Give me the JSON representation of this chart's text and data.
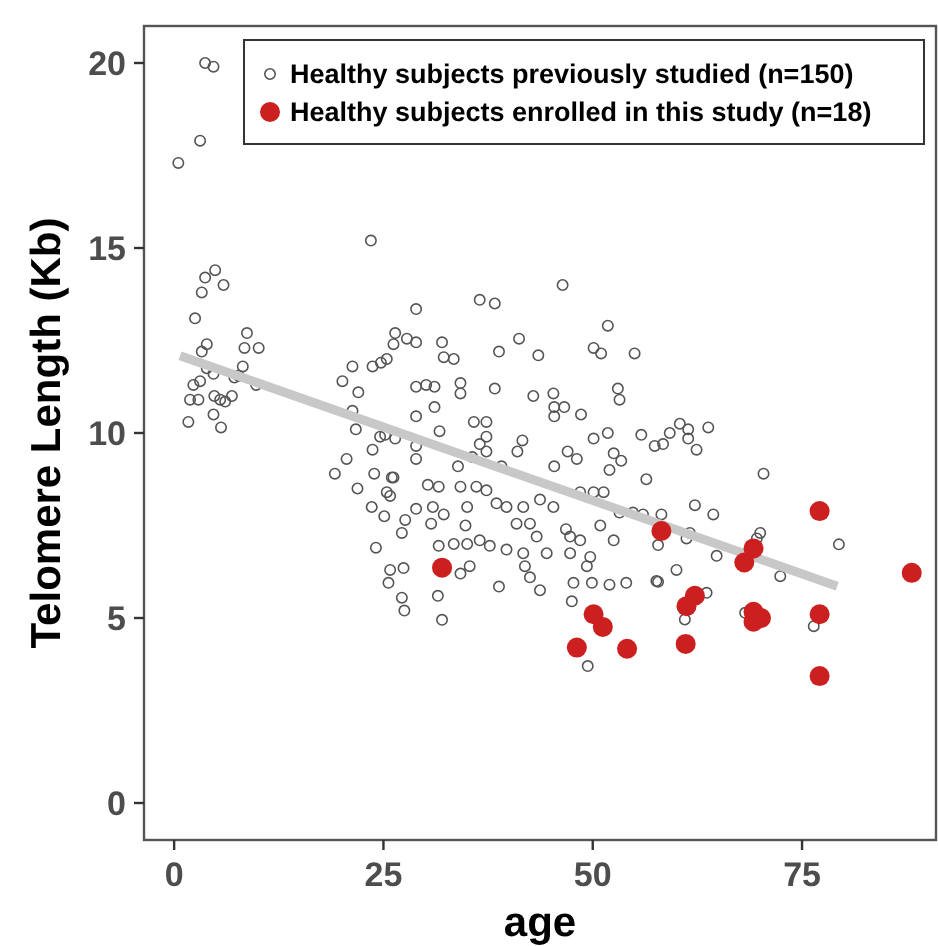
{
  "chart_data": {
    "type": "scatter",
    "xlabel": "age",
    "ylabel": "Telomere Length (Kb)",
    "xlim": [
      -3.6,
      91
    ],
    "ylim": [
      -1,
      21
    ],
    "xticks": [
      0,
      25,
      50,
      75
    ],
    "yticks": [
      0,
      5,
      10,
      15,
      20
    ],
    "grid": false,
    "legend": "top right",
    "marker": "circle",
    "series": [
      {
        "name": "Healthy subjects previously studied (n=150)",
        "color": "#555555",
        "x": [
          3.7,
          4.7,
          3.1,
          0.5,
          23.5,
          4.9,
          3.7,
          3.3,
          5.9,
          2.5,
          3.9,
          3.3,
          8.7,
          8.4,
          10.1,
          3.9,
          4.7,
          8.2,
          7.7,
          7.2,
          3.1,
          2.3,
          1.9,
          2.9,
          4.8,
          5.5,
          6.1,
          6.9,
          9.8,
          1.7,
          4.7,
          5.6,
          21.3,
          20.1,
          22,
          23.7,
          24.7,
          25.4,
          26.2,
          26.4,
          21.3,
          21.7,
          20.6,
          23.7,
          24.6,
          19.2,
          21.9,
          23.9,
          23.6,
          26,
          25.8,
          25.1,
          24.1,
          25.8,
          25.6,
          46.4,
          36.5,
          38.3,
          28.9,
          51.8,
          27.8,
          28.9,
          32,
          41.2,
          50.1,
          51,
          55,
          38.8,
          43.5,
          32.2,
          33.4,
          34.2,
          34.2,
          28.9,
          30.1,
          31.1,
          38.3,
          42.9,
          45.3,
          45.4,
          45.4,
          46.6,
          48.6,
          53,
          53.2,
          28.9,
          31.1,
          35.8,
          37.3,
          31.7,
          51.8,
          50.1,
          55.8,
          57.4,
          41.6,
          41,
          36.5,
          37.3,
          28.9,
          28.9,
          26.4,
          25.2,
          37.3,
          35.6,
          47,
          48.1,
          52.5,
          53.4,
          52,
          45.4,
          33.9,
          39.1,
          56.4,
          26.2,
          25.4,
          27.6,
          27.2,
          27.4,
          27.2,
          27.5,
          31.5,
          32,
          30.3,
          31.6,
          34.2,
          30.9,
          28.9,
          30.7,
          32.2,
          35,
          36.1,
          37.3,
          38.5,
          39.7,
          41.7,
          43.7,
          45.3,
          40.9,
          42.5,
          34.8,
          33.4,
          35,
          36.5,
          37.7,
          39.7,
          41.7,
          43.3,
          44.5,
          31.6,
          34.2,
          35.3,
          38.8,
          41.9,
          42.5,
          43.7,
          47.3,
          47.3,
          48.5,
          49.7,
          49.3,
          47.7,
          47.5,
          49.9,
          52,
          54,
          49.4,
          48.5,
          50.1,
          51.3,
          46.8,
          50.9,
          52.5,
          53.2,
          54.8,
          57.6,
          60.4,
          61.4,
          59.2,
          58.4,
          62.4,
          63.8,
          61.4,
          70.4,
          62.2,
          64.4,
          58.2,
          56,
          57.8,
          61.2,
          61.6,
          70,
          69.6,
          79.4,
          64.8,
          72.4,
          60,
          57.8,
          63.6,
          61,
          68.2,
          76.4
        ],
        "values": [
          20.0,
          19.9,
          17.9,
          17.3,
          15.2,
          14.4,
          14.2,
          13.8,
          14.0,
          13.1,
          12.4,
          12.2,
          12.7,
          12.3,
          12.3,
          11.75,
          11.6,
          11.8,
          11.55,
          11.5,
          11.4,
          11.3,
          10.9,
          10.9,
          11.0,
          10.9,
          10.85,
          11.0,
          11.3,
          10.3,
          10.5,
          10.15,
          11.8,
          11.4,
          11.1,
          11.8,
          11.9,
          12.0,
          12.4,
          12.7,
          10.6,
          10.1,
          9.3,
          9.55,
          9.9,
          8.9,
          8.5,
          8.9,
          8.0,
          8.8,
          8.3,
          7.75,
          6.9,
          6.3,
          5.95,
          14.0,
          13.6,
          13.5,
          13.35,
          12.9,
          12.55,
          12.45,
          12.45,
          12.55,
          12.3,
          12.15,
          12.15,
          12.2,
          12.1,
          12.05,
          12.0,
          11.35,
          11.07,
          11.25,
          11.3,
          11.25,
          11.2,
          11.0,
          11.07,
          10.7,
          10.45,
          10.7,
          10.5,
          11.2,
          10.9,
          10.45,
          10.7,
          10.3,
          10.3,
          10.05,
          10.0,
          9.85,
          9.95,
          9.65,
          9.8,
          9.5,
          9.7,
          9.9,
          9.65,
          9.3,
          9.85,
          9.95,
          9.5,
          9.35,
          9.5,
          9.3,
          9.45,
          9.25,
          9.0,
          9.1,
          9.1,
          9.1,
          8.75,
          8.8,
          8.4,
          7.65,
          7.3,
          6.35,
          5.55,
          5.2,
          5.6,
          4.95,
          8.6,
          8.55,
          8.55,
          8.0,
          7.95,
          7.55,
          7.8,
          8.0,
          8.55,
          8.45,
          8.1,
          8.0,
          8.0,
          8.2,
          8.0,
          7.55,
          7.55,
          7.5,
          7.0,
          7.0,
          7.1,
          6.95,
          6.85,
          6.75,
          7.2,
          6.75,
          6.95,
          6.2,
          6.4,
          5.85,
          6.4,
          6.1,
          5.75,
          7.2,
          6.75,
          7.1,
          6.65,
          6.4,
          5.95,
          5.45,
          5.95,
          5.9,
          5.95,
          3.7,
          8.4,
          8.4,
          8.4,
          7.4,
          7.5,
          7.1,
          7.85,
          7.85,
          6.0,
          10.25,
          10.1,
          10.0,
          9.7,
          9.55,
          10.15,
          9.85,
          8.9,
          8.05,
          7.8,
          7.8,
          7.8,
          6.97,
          7.15,
          7.3,
          7.3,
          7.15,
          6.99,
          6.68,
          6.13,
          6.3,
          5.98,
          5.68,
          4.96,
          5.14,
          4.78
        ]
      },
      {
        "type": "line",
        "color": "#c8c8c8",
        "marker": "none",
        "x": [
          0.7,
          79.2
        ],
        "values": [
          12.09,
          5.86
        ]
      },
      {
        "name": "Healthy subjects enrolled in this study (n=18)",
        "color": "#cc1f1f",
        "x": [
          32.0,
          50.1,
          51.2,
          48.1,
          54.1,
          77.1,
          58.2,
          69.2,
          68.1,
          88.1,
          62.2,
          61.2,
          69.2,
          69.2,
          70.1,
          77.1,
          61.1,
          77.1
        ],
        "values": [
          6.36,
          5.1,
          4.76,
          4.2,
          4.17,
          7.89,
          7.35,
          6.88,
          6.5,
          6.22,
          5.6,
          5.32,
          5.17,
          4.9,
          5.0,
          5.1,
          4.3,
          3.43
        ]
      }
    ]
  }
}
